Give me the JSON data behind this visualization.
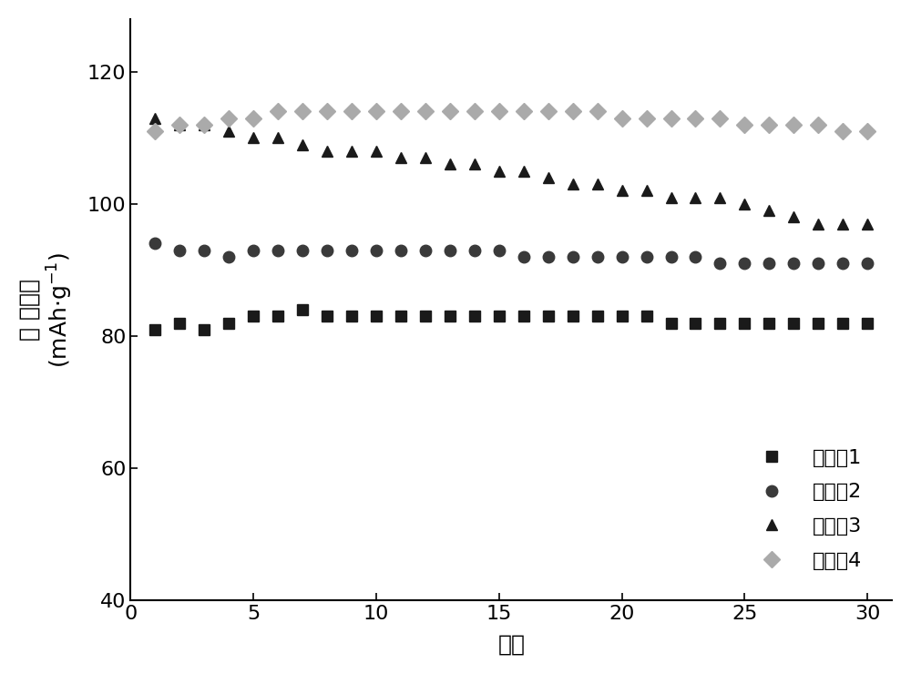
{
  "series": [
    {
      "label": "实施例1",
      "marker": "s",
      "color": "#1a1a1a",
      "markersize": 8,
      "x": [
        1,
        2,
        3,
        4,
        5,
        6,
        7,
        8,
        9,
        10,
        11,
        12,
        13,
        14,
        15,
        16,
        17,
        18,
        19,
        20,
        21,
        22,
        23,
        24,
        25,
        26,
        27,
        28,
        29,
        30
      ],
      "y": [
        81,
        82,
        81,
        82,
        83,
        83,
        84,
        83,
        83,
        83,
        83,
        83,
        83,
        83,
        83,
        83,
        83,
        83,
        83,
        83,
        83,
        82,
        82,
        82,
        82,
        82,
        82,
        82,
        82,
        82
      ]
    },
    {
      "label": "实施例2",
      "marker": "o",
      "color": "#3a3a3a",
      "markersize": 9,
      "x": [
        1,
        2,
        3,
        4,
        5,
        6,
        7,
        8,
        9,
        10,
        11,
        12,
        13,
        14,
        15,
        16,
        17,
        18,
        19,
        20,
        21,
        22,
        23,
        24,
        25,
        26,
        27,
        28,
        29,
        30
      ],
      "y": [
        94,
        93,
        93,
        92,
        93,
        93,
        93,
        93,
        93,
        93,
        93,
        93,
        93,
        93,
        93,
        92,
        92,
        92,
        92,
        92,
        92,
        92,
        92,
        91,
        91,
        91,
        91,
        91,
        91,
        91
      ]
    },
    {
      "label": "实施例3",
      "marker": "^",
      "color": "#1a1a1a",
      "markersize": 9,
      "x": [
        1,
        2,
        3,
        4,
        5,
        6,
        7,
        8,
        9,
        10,
        11,
        12,
        13,
        14,
        15,
        16,
        17,
        18,
        19,
        20,
        21,
        22,
        23,
        24,
        25,
        26,
        27,
        28,
        29,
        30
      ],
      "y": [
        113,
        112,
        112,
        111,
        110,
        110,
        109,
        108,
        108,
        108,
        107,
        107,
        106,
        106,
        105,
        105,
        104,
        103,
        103,
        102,
        102,
        101,
        101,
        101,
        100,
        99,
        98,
        97,
        97,
        97
      ]
    },
    {
      "label": "实施例4",
      "marker": "D",
      "color": "#aaaaaa",
      "markersize": 9,
      "x": [
        1,
        2,
        3,
        4,
        5,
        6,
        7,
        8,
        9,
        10,
        11,
        12,
        13,
        14,
        15,
        16,
        17,
        18,
        19,
        20,
        21,
        22,
        23,
        24,
        25,
        26,
        27,
        28,
        29,
        30
      ],
      "y": [
        111,
        112,
        112,
        113,
        113,
        114,
        114,
        114,
        114,
        114,
        114,
        114,
        114,
        114,
        114,
        114,
        114,
        114,
        114,
        113,
        113,
        113,
        113,
        113,
        112,
        112,
        112,
        112,
        111,
        111
      ]
    }
  ],
  "xlabel": "循环",
  "xlim": [
    0,
    31
  ],
  "ylim": [
    40,
    128
  ],
  "yticks": [
    40,
    60,
    80,
    100,
    120
  ],
  "xticks": [
    0,
    5,
    10,
    15,
    20,
    25,
    30
  ],
  "bg_color": "#ffffff",
  "tick_fontsize": 16,
  "label_fontsize": 18,
  "legend_fontsize": 16
}
